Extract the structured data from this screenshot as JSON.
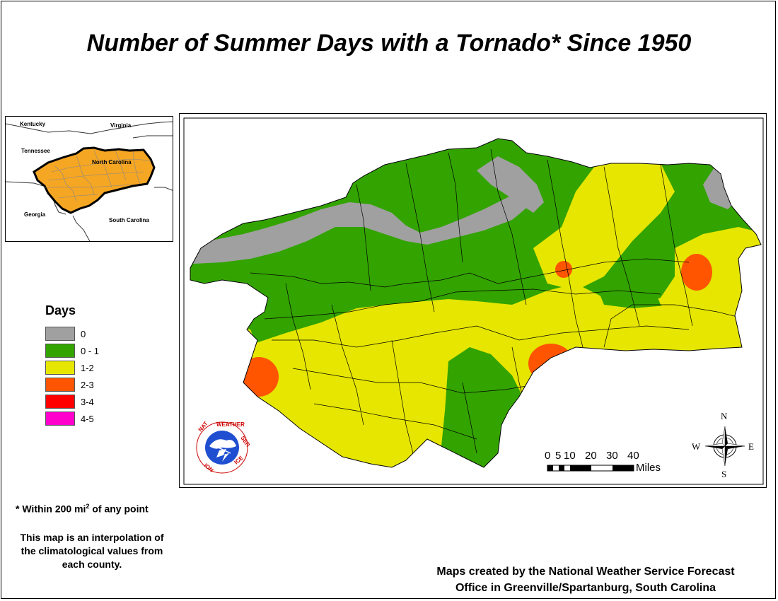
{
  "title": "Number of Summer Days with a Tornado* Since 1950",
  "inset_map": {
    "labels": {
      "kentucky": "Kentucky",
      "virginia": "Virginia",
      "tennessee": "Tennessee",
      "north_carolina": "North Carolina",
      "georgia": "Georgia",
      "south_carolina": "South Carolina"
    },
    "highlight_color": "#f5a623"
  },
  "legend": {
    "title": "Days",
    "items": [
      {
        "label": "0",
        "color": "#a0a0a0"
      },
      {
        "label": "0 - 1",
        "color": "#33a300"
      },
      {
        "label": "1-2",
        "color": "#e6e600"
      },
      {
        "label": "2-3",
        "color": "#ff5500"
      },
      {
        "label": "3-4",
        "color": "#ff0000"
      },
      {
        "label": "4-5",
        "color": "#ff00cc"
      }
    ]
  },
  "footnote": {
    "prefix": "* Within 200 mi",
    "sup": "2",
    "suffix": " of any point"
  },
  "interpolation_note": {
    "line1": "This map is an interpolation of",
    "line2": "the climatological values from",
    "line3": "each county."
  },
  "credit": {
    "line1": "Maps created by the National Weather Service Forecast",
    "line2": "Office in Greenville/Spartanburg, South Carolina"
  },
  "scale_bar": {
    "ticks": [
      "0",
      "5",
      "10",
      "20",
      "30",
      "40"
    ],
    "unit": "Miles"
  },
  "compass": {
    "n": "N",
    "s": "S",
    "e": "E",
    "w": "W"
  },
  "logo": {
    "text": "NATIONAL WEATHER SERVICE"
  }
}
